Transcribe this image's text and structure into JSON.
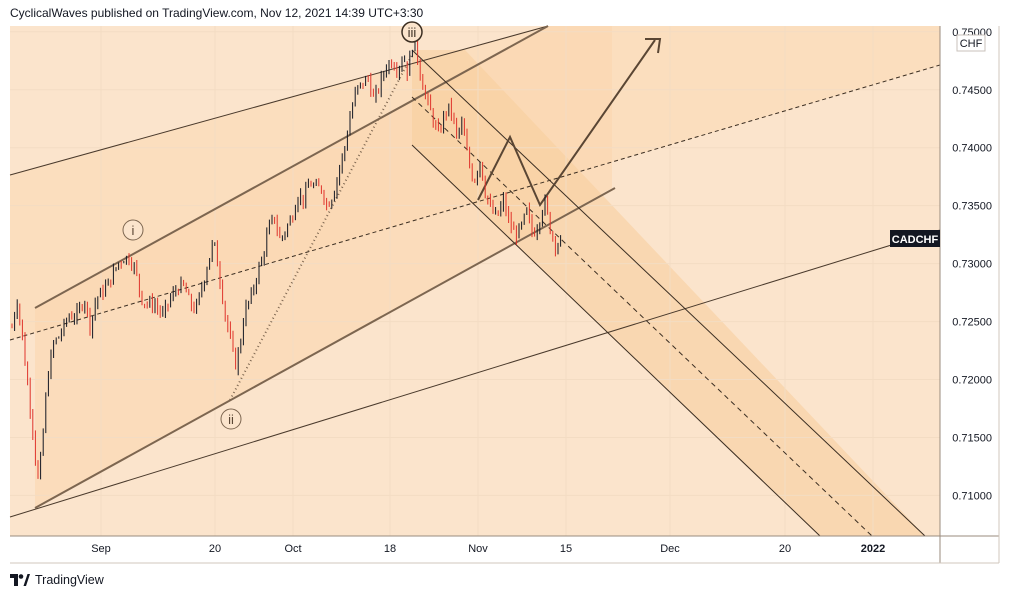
{
  "header": {
    "text": "CyclicalWaves published on TradingView.com, Nov 12, 2021 14:39 UTC+3:30"
  },
  "footer": {
    "brand": "TradingView",
    "logo_icon": "tradingview-logo-icon"
  },
  "chart_data": {
    "type": "candlestick",
    "symbol": "CADCHF",
    "currency": "CHF",
    "y_axis": {
      "ylim": [
        0.7065,
        0.7505
      ],
      "ticks": [
        "0.75000",
        "0.74500",
        "0.74000",
        "0.73500",
        "0.73000",
        "0.72500",
        "0.72000",
        "0.71500",
        "0.71000"
      ]
    },
    "x_axis": {
      "ticks": [
        "Sep",
        "20",
        "Oct",
        "18",
        "Nov",
        "15",
        "Dec",
        "20",
        "2022"
      ]
    },
    "wave_labels": [
      "i",
      "ii",
      "iii"
    ],
    "last_price": 0.7321,
    "series": [
      {
        "name": "CADCHF",
        "approx_path": [
          [
            0,
            0.7245
          ],
          [
            5,
            0.727
          ],
          [
            10,
            0.724
          ],
          [
            16,
            0.7195
          ],
          [
            22,
            0.7152
          ],
          [
            26,
            0.711
          ],
          [
            30,
            0.7135
          ],
          [
            36,
            0.72
          ],
          [
            42,
            0.723
          ],
          [
            50,
            0.724
          ],
          [
            58,
            0.7255
          ],
          [
            66,
            0.7255
          ],
          [
            74,
            0.727
          ],
          [
            80,
            0.7245
          ],
          [
            86,
            0.727
          ],
          [
            92,
            0.7275
          ],
          [
            100,
            0.7285
          ],
          [
            108,
            0.73
          ],
          [
            114,
            0.7305
          ],
          [
            120,
            0.7305
          ],
          [
            126,
            0.7295
          ],
          [
            132,
            0.727
          ],
          [
            138,
            0.7265
          ],
          [
            146,
            0.7265
          ],
          [
            154,
            0.7255
          ],
          [
            162,
            0.727
          ],
          [
            170,
            0.728
          ],
          [
            176,
            0.728
          ],
          [
            182,
            0.7265
          ],
          [
            188,
            0.726
          ],
          [
            194,
            0.728
          ],
          [
            200,
            0.73
          ],
          [
            206,
            0.732
          ],
          [
            212,
            0.729
          ],
          [
            218,
            0.7255
          ],
          [
            224,
            0.723
          ],
          [
            228,
            0.7212
          ],
          [
            232,
            0.7225
          ],
          [
            238,
            0.726
          ],
          [
            244,
            0.727
          ],
          [
            250,
            0.729
          ],
          [
            256,
            0.7305
          ],
          [
            262,
            0.733
          ],
          [
            268,
            0.734
          ],
          [
            274,
            0.732
          ],
          [
            280,
            0.733
          ],
          [
            286,
            0.734
          ],
          [
            292,
            0.736
          ],
          [
            298,
            0.7355
          ],
          [
            304,
            0.737
          ],
          [
            310,
            0.7365
          ],
          [
            316,
            0.7365
          ],
          [
            322,
            0.735
          ],
          [
            328,
            0.736
          ],
          [
            334,
            0.738
          ],
          [
            340,
            0.74
          ],
          [
            346,
            0.743
          ],
          [
            352,
            0.745
          ],
          [
            358,
            0.7455
          ],
          [
            364,
            0.746
          ],
          [
            370,
            0.744
          ],
          [
            376,
            0.7455
          ],
          [
            382,
            0.747
          ],
          [
            388,
            0.7475
          ],
          [
            394,
            0.7468
          ],
          [
            400,
            0.748
          ],
          [
            404,
            0.7465
          ],
          [
            410,
            0.7492
          ],
          [
            414,
            0.748
          ],
          [
            418,
            0.746
          ],
          [
            424,
            0.744
          ],
          [
            430,
            0.7425
          ],
          [
            436,
            0.741
          ],
          [
            442,
            0.743
          ],
          [
            448,
            0.7435
          ],
          [
            454,
            0.741
          ],
          [
            460,
            0.742
          ],
          [
            466,
            0.739
          ],
          [
            472,
            0.737
          ],
          [
            478,
            0.739
          ],
          [
            484,
            0.736
          ],
          [
            490,
            0.7345
          ],
          [
            496,
            0.734
          ],
          [
            502,
            0.7355
          ],
          [
            508,
            0.7335
          ],
          [
            514,
            0.7325
          ],
          [
            520,
            0.733
          ],
          [
            526,
            0.7345
          ],
          [
            532,
            0.7325
          ],
          [
            538,
            0.7335
          ],
          [
            544,
            0.7355
          ],
          [
            550,
            0.733
          ],
          [
            556,
            0.7315
          ],
          [
            562,
            0.7321
          ]
        ]
      }
    ]
  }
}
